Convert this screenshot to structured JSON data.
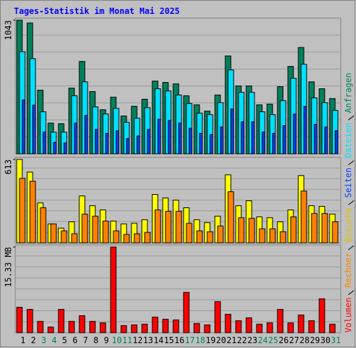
{
  "title": "Tages-Statistik im Monat Mai 2025",
  "chart_data": [
    {
      "type": "bar",
      "ylim": [
        0,
        1043
      ],
      "yticks": [
        1043
      ],
      "series": [
        {
          "name": "Anfragen",
          "color": "#00805c",
          "values": [
            1043,
            1021,
            497,
            240,
            235,
            513,
            721,
            486,
            344,
            442,
            295,
            371,
            426,
            568,
            557,
            546,
            453,
            382,
            333,
            459,
            764,
            530,
            530,
            382,
            388,
            524,
            682,
            830,
            562,
            508,
            431
          ]
        },
        {
          "name": "Dateien",
          "color": "#00e0ff",
          "values": [
            797,
            743,
            328,
            169,
            169,
            453,
            562,
            366,
            311,
            355,
            246,
            278,
            360,
            508,
            491,
            459,
            393,
            317,
            306,
            399,
            655,
            480,
            480,
            328,
            306,
            415,
            590,
            699,
            437,
            399,
            339
          ]
        },
        {
          "name": "Seiten",
          "color": "#0040ff",
          "values": [
            420,
            380,
            170,
            90,
            85,
            240,
            300,
            190,
            160,
            180,
            120,
            140,
            190,
            270,
            260,
            240,
            200,
            160,
            150,
            210,
            350,
            250,
            250,
            170,
            160,
            220,
            310,
            370,
            230,
            210,
            180
          ]
        }
      ]
    },
    {
      "type": "bar",
      "ylim": [
        0,
        613
      ],
      "yticks": [
        613
      ],
      "series": [
        {
          "name": "Besuche",
          "color": "#ffff00",
          "values": [
            613,
            520,
            294,
            139,
            108,
            155,
            345,
            273,
            242,
            160,
            139,
            144,
            170,
            355,
            330,
            314,
            258,
            170,
            149,
            196,
            500,
            273,
            309,
            191,
            185,
            155,
            242,
            494,
            273,
            268,
            211
          ]
        },
        {
          "name": "Rechner",
          "color": "#ff8000",
          "values": [
            474,
            453,
            258,
            139,
            88,
            67,
            211,
            196,
            160,
            88,
            62,
            67,
            77,
            242,
            232,
            232,
            144,
            88,
            82,
            124,
            376,
            185,
            180,
            103,
            103,
            82,
            191,
            381,
            216,
            216,
            155
          ]
        }
      ]
    },
    {
      "type": "bar",
      "ylim": [
        0,
        15.33
      ],
      "yticks": [
        {
          "value": 15.33,
          "label": "15.33 MB"
        }
      ],
      "categories": [
        "1",
        "2",
        "3",
        "4",
        "5",
        "6",
        "7",
        "8",
        "9",
        "10",
        "11",
        "12",
        "13",
        "14",
        "15",
        "16",
        "17",
        "18",
        "19",
        "20",
        "21",
        "22",
        "23",
        "24",
        "25",
        "26",
        "27",
        "28",
        "29",
        "30",
        "31"
      ],
      "highlighted": [
        "3",
        "4",
        "10",
        "11",
        "17",
        "18",
        "24",
        "25",
        "31"
      ],
      "highlight_color": "#00805c",
      "series": [
        {
          "name": "Volumen",
          "color": "#ff0000",
          "values": [
            4.56,
            4.18,
            2.03,
            1.01,
            4.18,
            2.03,
            3.04,
            2.03,
            1.77,
            15.33,
            1.27,
            1.39,
            1.52,
            2.79,
            2.41,
            2.28,
            7.22,
            1.65,
            1.39,
            5.57,
            3.29,
            2.15,
            2.66,
            1.52,
            1.77,
            4.18,
            1.77,
            3.17,
            2.15,
            6.08,
            1.52
          ]
        }
      ]
    }
  ]
}
